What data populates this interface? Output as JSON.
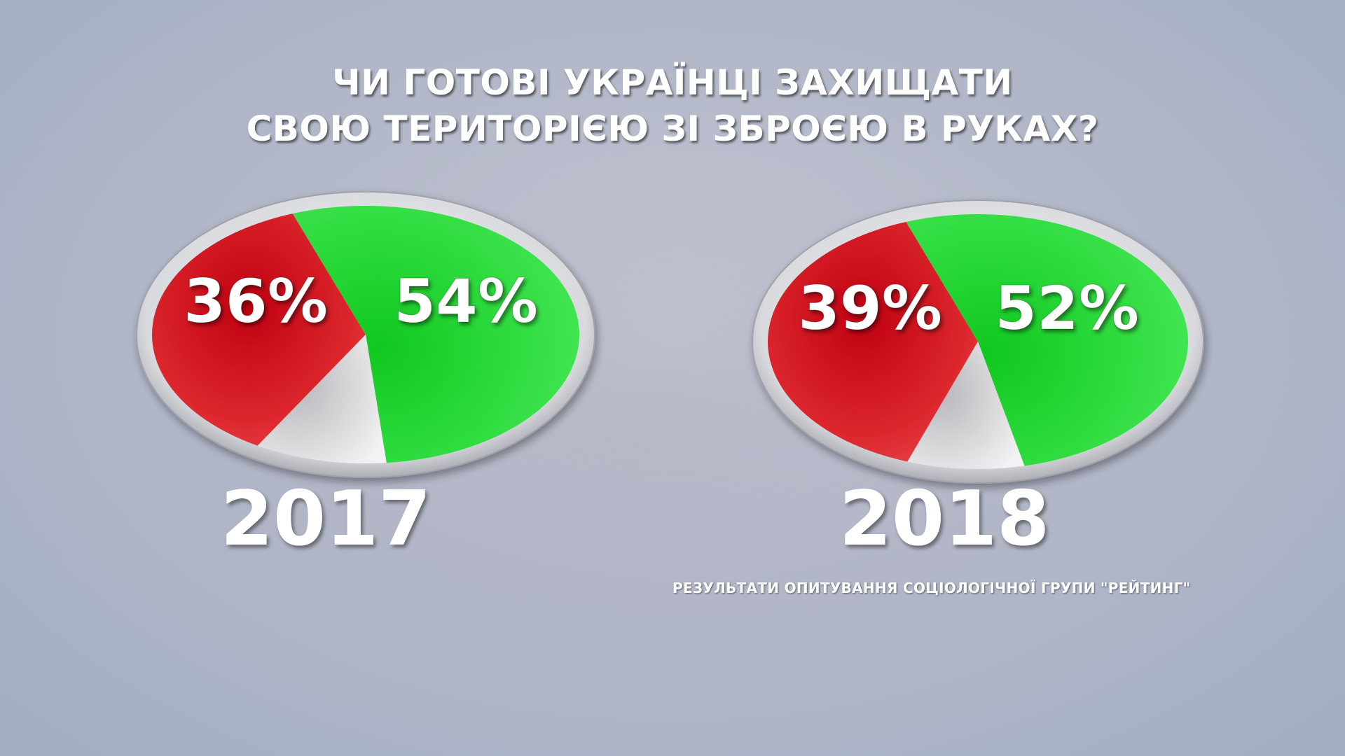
{
  "title": {
    "line1": "ЧИ ГОТОВІ УКРАЇНЦІ ЗАХИЩАТИ",
    "line2": "СВОЮ ТЕРИТОРІЄЮ ЗІ ЗБРОЄЮ В РУКАХ?"
  },
  "source": "РЕЗУЛЬТАТИ ОПИТУВАННЯ СОЦІОЛОГІЧНОЇ ГРУПИ \"РЕЙТИНГ\"",
  "colors": {
    "red": "#d81c22",
    "green": "#2fdc3f",
    "grey": "#e6e6e8"
  },
  "chart_data": [
    {
      "type": "pie",
      "year": "2017",
      "slices": [
        {
          "label": "36%",
          "value": 36,
          "color": "#d81c22"
        },
        {
          "label": "54%",
          "value": 54,
          "color": "#2fdc3f"
        },
        {
          "label": "",
          "value": 10,
          "color": "#e6e6e8"
        }
      ]
    },
    {
      "type": "pie",
      "year": "2018",
      "slices": [
        {
          "label": "39%",
          "value": 39,
          "color": "#d81c22"
        },
        {
          "label": "52%",
          "value": 52,
          "color": "#2fdc3f"
        },
        {
          "label": "",
          "value": 9,
          "color": "#e6e6e8"
        }
      ]
    }
  ]
}
